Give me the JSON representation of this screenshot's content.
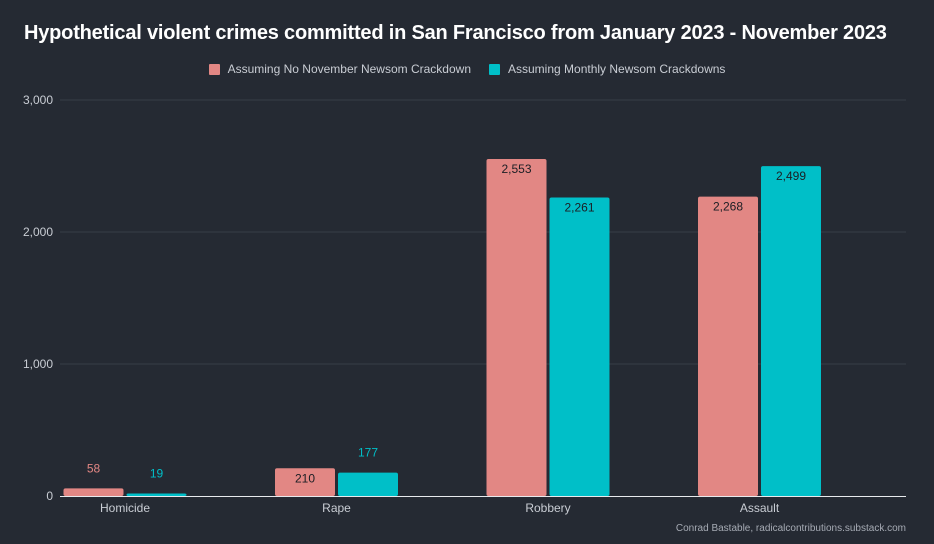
{
  "chart_data": {
    "type": "bar",
    "title": "Hypothetical violent crimes committed in San Francisco from January 2023 - November 2023",
    "xlabel": "",
    "ylabel": "",
    "categories": [
      "Homicide",
      "Rape",
      "Robbery",
      "Assault"
    ],
    "series": [
      {
        "name": "Assuming No November Newsom Crackdown",
        "color": "#e28784",
        "values": [
          58,
          210,
          2553,
          2268
        ],
        "labels": [
          "58",
          "210",
          "2,553",
          "2,268"
        ]
      },
      {
        "name": "Assuming Monthly Newsom Crackdowns",
        "color": "#00bfc8",
        "values": [
          19,
          177,
          2261,
          2499
        ],
        "labels": [
          "19",
          "177",
          "2,261",
          "2,499"
        ]
      }
    ],
    "ylim": [
      0,
      3000
    ],
    "yticks": [
      0,
      1000,
      2000,
      3000
    ],
    "ytick_labels": [
      "0",
      "1,000",
      "2,000",
      "3,000"
    ],
    "legend_position": "top-center",
    "grid": true,
    "credit": "Conrad Bastable, radicalcontributions.substack.com"
  },
  "colors": {
    "background": "#252a33",
    "grid": "#383d47",
    "baseline": "#e8eaed",
    "text": "#c9cdd4",
    "title": "#ffffff",
    "label_inside": "#1b1e24"
  }
}
